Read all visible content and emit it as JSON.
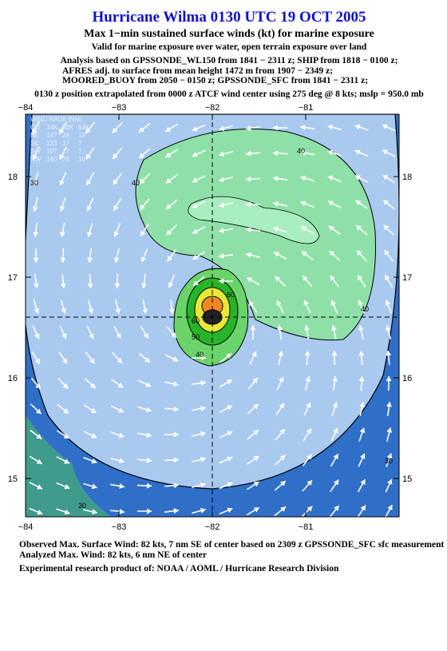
{
  "header": {
    "title": "Hurricane Wilma 0130 UTC 19 OCT 2005",
    "subtitle": "Max 1−min sustained surface winds (kt) for marine exposure",
    "valid": "Valid for marine exposure over water, open terrain exposure over land",
    "analysis": [
      "Analysis based on  GPSSONDE_WL150 from 1841 − 2311 z;  SHIP from 1818 − 0100 z;",
      "AFRES adj. to surface from mean height 1472 m from 1907 − 2349 z;",
      "MOORED_BUOY from 2050 − 0150 z;  GPSSONDE_SFC from 1841 − 2311 z;"
    ],
    "position": "0130 z position extrapolated from 0000 z ATCF wind center using 275 deg @ 8 kts; mslp = 950.0 mb"
  },
  "map": {
    "lon_labels": [
      "−84",
      "−83",
      "−82",
      "−81"
    ],
    "lat_labels": [
      "18",
      "17",
      "16",
      "15"
    ],
    "wind_radii": {
      "title": "WIND RADII (NM)",
      "rows": [
        [
          "QD",
          "34K",
          "50K",
          "64K"
        ],
        [
          "NE",
          "147",
          "24",
          "13"
        ],
        [
          "SE",
          "133",
          "17",
          "7"
        ],
        [
          "SW",
          "107",
          "17",
          "7"
        ],
        [
          "NW",
          "140",
          "25",
          "10"
        ]
      ]
    },
    "contour_labels": [
      "40",
      "40",
      "40",
      "40",
      "30",
      "30",
      "30",
      "50",
      "60",
      "60"
    ]
  },
  "footer": [
    "Observed Max. Surface Wind: 82 kts, 7 nm SE of center based on 2309 z GPSSONDE_SFC sfc measurement",
    "Analyzed Max. Wind: 82 kts, 6 nm NE of center",
    "Experimental research product of:  NOAA / AOML / Hurricane Research Division"
  ]
}
